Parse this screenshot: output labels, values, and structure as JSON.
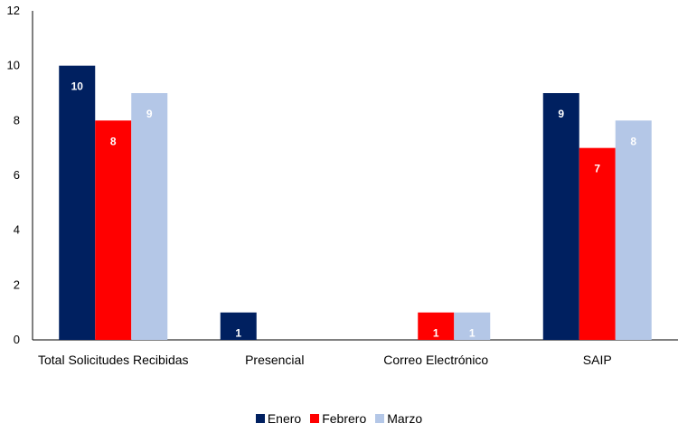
{
  "chart_data": {
    "type": "bar",
    "categories": [
      "Total Solicitudes Recibidas",
      "Presencial",
      "Correo Electrónico",
      "SAIP"
    ],
    "series": [
      {
        "name": "Enero",
        "color": "#002060",
        "values": [
          10,
          1,
          null,
          9
        ]
      },
      {
        "name": "Febrero",
        "color": "#ff0000",
        "values": [
          8,
          null,
          1,
          7
        ]
      },
      {
        "name": "Marzo",
        "color": "#b4c7e7",
        "values": [
          9,
          null,
          1,
          8
        ]
      }
    ],
    "ylim": [
      0,
      12
    ],
    "yticks": [
      "0",
      "2",
      "4",
      "6",
      "8",
      "10",
      "12"
    ],
    "grid": false,
    "legend_position": "bottom"
  }
}
